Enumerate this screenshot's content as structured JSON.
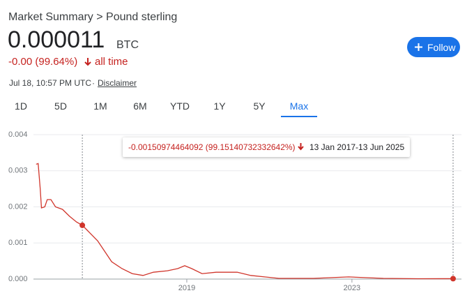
{
  "header": {
    "breadcrumb": "Market Summary > Pound sterling",
    "price": "0.000011",
    "unit": "BTC",
    "change": "-0.00 (99.64%)",
    "period": "all time",
    "timestamp": "Jul 18, 10:57 PM UTC",
    "separator": "·",
    "disclaimer": "Disclaimer",
    "follow": "Follow"
  },
  "tabs": [
    "1D",
    "5D",
    "1M",
    "6M",
    "YTD",
    "1Y",
    "5Y",
    "Max"
  ],
  "selected_tab": 7,
  "tooltip": {
    "change": "-0.00150974464092 (99.15140732332642%)",
    "range": "13 Jan 2017-13 Jun 2025"
  },
  "chart_data": {
    "type": "line",
    "x": [
      2015.35,
      2015.4,
      2015.45,
      2015.48,
      2015.56,
      2015.62,
      2015.71,
      2015.82,
      2015.99,
      2016.16,
      2016.33,
      2016.47,
      2016.59,
      2016.84,
      2017.01,
      2017.18,
      2017.43,
      2017.68,
      2017.94,
      2018.19,
      2018.53,
      2018.78,
      2018.95,
      2019.12,
      2019.37,
      2019.71,
      2020.22,
      2020.55,
      2021.23,
      2022.07,
      2022.92,
      2023.76,
      2024.6,
      2025.45
    ],
    "series": [
      {
        "color": "#d0352b",
        "values": [
          0.00318,
          0.0032,
          0.0025,
          0.00197,
          0.002,
          0.0022,
          0.0022,
          0.002,
          0.00193,
          0.00174,
          0.00158,
          0.00149,
          0.00135,
          0.00106,
          0.00077,
          0.00048,
          0.00029,
          0.00015,
          0.0001,
          0.00019,
          0.00023,
          0.00029,
          0.00037,
          0.00029,
          0.00015,
          0.00019,
          0.00019,
          0.0001,
          2e-05,
          2e-05,
          6e-05,
          2e-05,
          1e-05,
          1.1e-05
        ]
      }
    ],
    "highlight_points": [
      11,
      33
    ],
    "xlim": [
      2015.32,
      2025.45
    ],
    "xticks": [
      2019,
      2023
    ],
    "ylim": [
      0,
      0.004
    ],
    "yticks": [
      {
        "value": 0,
        "label": "0.000"
      },
      0.001,
      0.002,
      0.003,
      0.004
    ],
    "grid": true
  }
}
